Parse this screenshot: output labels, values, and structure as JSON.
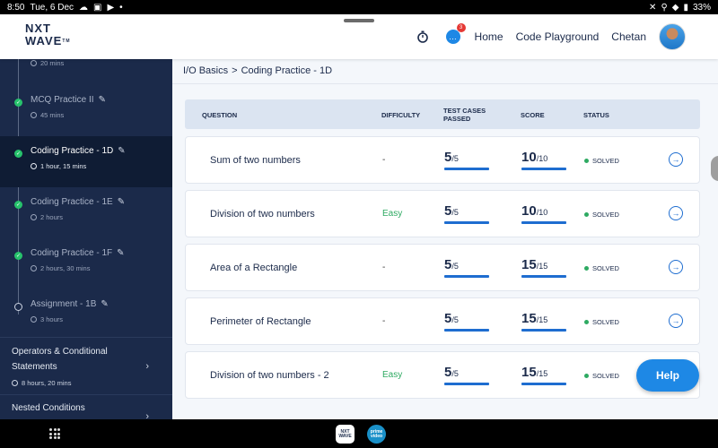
{
  "status_bar": {
    "time": "8:50",
    "date": "Tue, 6 Dec",
    "battery": "33%"
  },
  "header": {
    "logo_line1": "NXT",
    "logo_line2": "WAVE",
    "logo_tm": "TM",
    "badge_count": "3",
    "nav_home": "Home",
    "nav_code_playground": "Code Playground",
    "user_name": "Chetan"
  },
  "sidebar": {
    "top_partial_time": "20 mins",
    "items": [
      {
        "title": "MCQ Practice II",
        "time": "45 mins",
        "state": "done"
      },
      {
        "title": "Coding Practice - 1D",
        "time": "1 hour, 15 mins",
        "state": "active"
      },
      {
        "title": "Coding Practice - 1E",
        "time": "2 hours",
        "state": "done"
      },
      {
        "title": "Coding Practice - 1F",
        "time": "2 hours, 30 mins",
        "state": "done"
      },
      {
        "title": "Assignment - 1B",
        "time": "3 hours",
        "state": "open"
      }
    ],
    "sections": [
      {
        "title": "Operators & Conditional Statements",
        "time": "8 hours, 20 mins"
      },
      {
        "title": "Nested Conditions",
        "time": ""
      }
    ]
  },
  "breadcrumb": {
    "parent": "I/O Basics",
    "separator": ">",
    "current": "Coding Practice - 1D"
  },
  "table": {
    "headers": {
      "question": "QUESTION",
      "difficulty": "DIFFICULTY",
      "tests_line1": "TEST CASES",
      "tests_line2": "PASSED",
      "score": "SCORE",
      "status": "STATUS"
    },
    "rows": [
      {
        "question": "Sum of two numbers",
        "difficulty": "-",
        "easy": false,
        "tests": "5",
        "tests_total": "/5",
        "score": "10",
        "score_total": "/10",
        "status": "SOLVED"
      },
      {
        "question": "Division of two numbers",
        "difficulty": "Easy",
        "easy": true,
        "tests": "5",
        "tests_total": "/5",
        "score": "10",
        "score_total": "/10",
        "status": "SOLVED"
      },
      {
        "question": "Area of a Rectangle",
        "difficulty": "-",
        "easy": false,
        "tests": "5",
        "tests_total": "/5",
        "score": "15",
        "score_total": "/15",
        "status": "SOLVED"
      },
      {
        "question": "Perimeter of Rectangle",
        "difficulty": "-",
        "easy": false,
        "tests": "5",
        "tests_total": "/5",
        "score": "15",
        "score_total": "/15",
        "status": "SOLVED"
      },
      {
        "question": "Division of two numbers - 2",
        "difficulty": "Easy",
        "easy": true,
        "tests": "5",
        "tests_total": "/5",
        "score": "15",
        "score_total": "/15",
        "status": "SOLVED"
      }
    ]
  },
  "help_button": "Help",
  "dock": {
    "app1": "NXT WAVE",
    "app2": "prime video"
  },
  "colors": {
    "sidebar_bg": "#1b2a4a",
    "accent_blue": "#1e6dd0",
    "solved_green": "#2eaa62",
    "help_blue": "#1e88e5"
  }
}
